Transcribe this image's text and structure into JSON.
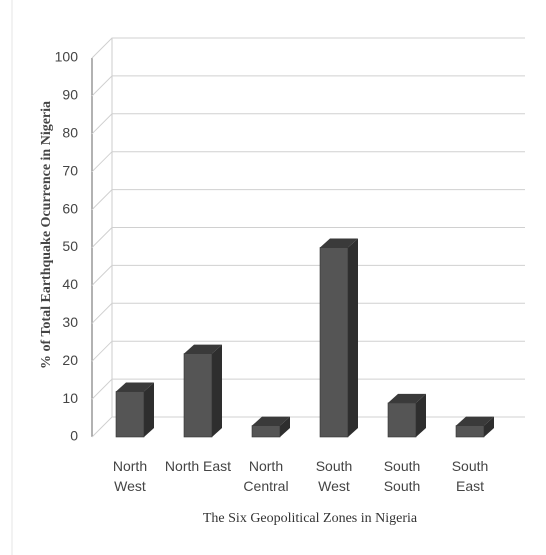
{
  "chart_data": {
    "type": "bar3d",
    "x_label": "The Six Geopolitical Zones in Nigeria",
    "y_label": "% of Total Earthquake Ocurrence in Nigeria",
    "categories": [
      "North\nWest",
      "North East",
      "North\nCentral",
      "South\nWest",
      "South\nSouth",
      "South\nEast"
    ],
    "values": [
      12,
      22,
      3,
      50,
      9,
      3
    ],
    "color": "#555555",
    "ylim": [
      0,
      100
    ],
    "yticks": [
      0,
      10,
      20,
      30,
      40,
      50,
      60,
      70,
      80,
      90,
      100
    ],
    "grid": true
  }
}
